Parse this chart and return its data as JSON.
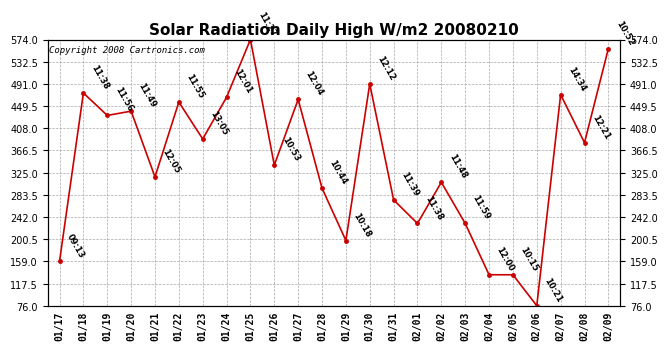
{
  "title": "Solar Radiation Daily High W/m2 20080210",
  "copyright": "Copyright 2008 Cartronics.com",
  "dates": [
    "01/17",
    "01/18",
    "01/19",
    "01/20",
    "01/21",
    "01/22",
    "01/23",
    "01/24",
    "01/25",
    "01/26",
    "01/27",
    "01/28",
    "01/29",
    "01/30",
    "01/31",
    "02/01",
    "02/02",
    "02/03",
    "02/04",
    "02/05",
    "02/06",
    "02/07",
    "02/08",
    "02/09"
  ],
  "values": [
    159,
    474,
    432,
    440,
    317,
    457,
    388,
    466,
    574,
    339,
    462,
    296,
    198,
    491,
    274,
    230,
    307,
    230,
    134,
    134,
    76,
    471,
    381,
    557
  ],
  "time_labels": [
    "09:13",
    "11:38",
    "11:56",
    "11:49",
    "12:05",
    "11:55",
    "13:05",
    "12:01",
    "11:27",
    "10:53",
    "12:04",
    "10:44",
    "10:18",
    "12:12",
    "11:39",
    "11:38",
    "11:48",
    "11:59",
    "12:00",
    "10:15",
    "10:21",
    "14:34",
    "12:21",
    "10:52"
  ],
  "line_color": "#cc0000",
  "marker_color": "#cc0000",
  "bg_color": "#ffffff",
  "grid_color": "#aaaaaa",
  "ylim": [
    76.0,
    574.0
  ],
  "yticks": [
    76.0,
    117.5,
    159.0,
    200.5,
    242.0,
    283.5,
    325.0,
    366.5,
    408.0,
    449.5,
    491.0,
    532.5,
    574.0
  ],
  "title_fontsize": 11,
  "label_fontsize": 6,
  "tick_fontsize": 7,
  "copyright_fontsize": 6.5
}
